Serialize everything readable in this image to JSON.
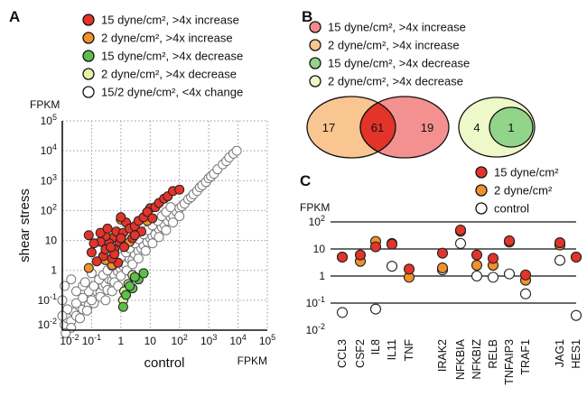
{
  "colors": {
    "red": "#e3342a",
    "orange": "#f0922b",
    "green": "#5cbf4a",
    "lightgreen": "#e4f3a6",
    "white": "#ffffff",
    "pink": "#f28a8a",
    "peach": "#f9c590",
    "venn_green": "#92d48a",
    "venn_lightgreen": "#eef8c8"
  },
  "panels": {
    "a": "A",
    "b": "B",
    "c": "C"
  },
  "legend_a": [
    {
      "text": "15 dyne/cm², >4x increase",
      "color": "red"
    },
    {
      "text": "2 dyne/cm², >4x increase",
      "color": "orange"
    },
    {
      "text": "15 dyne/cm², >4x decrease",
      "color": "green"
    },
    {
      "text": "2 dyne/cm², >4x decrease",
      "color": "lightgreen"
    },
    {
      "text": "15/2 dyne/cm², <4x change",
      "color": "white"
    }
  ],
  "legend_b": [
    {
      "text": "15 dyne/cm², >4x increase",
      "color": "pink"
    },
    {
      "text": "2 dyne/cm², >4x increase",
      "color": "peach"
    },
    {
      "text": "15 dyne/cm², >4x decrease",
      "color": "venn_green"
    },
    {
      "text": "2 dyne/cm², >4x decrease",
      "color": "venn_lightgreen"
    }
  ],
  "venn": {
    "increase": {
      "only_2": "17",
      "both": "61",
      "only_15": "19"
    },
    "decrease": {
      "only_2": "4",
      "both": "1"
    }
  },
  "legend_c": [
    {
      "text": "15 dyne/cm²",
      "color": "red"
    },
    {
      "text": "2 dyne/cm²",
      "color": "orange"
    },
    {
      "text": "control",
      "color": "white"
    }
  ],
  "chart_data": [
    {
      "type": "scatter",
      "title": "",
      "xlabel": "control",
      "ylabel": "shear stress",
      "x_unit": "FPKM",
      "y_unit": "FPKM",
      "scale": "log10",
      "xlim": [
        0.01,
        100000
      ],
      "ylim": [
        0.01,
        100000
      ],
      "xticks": [
        "10-2",
        "10-1",
        "1",
        "10",
        "102",
        "103",
        "104",
        "105"
      ],
      "yticks": [
        "10-2",
        "10-1",
        "1",
        "10",
        "102",
        "103",
        "104",
        "105"
      ],
      "grid": "dotted",
      "series": [
        {
          "name": "15 dyne/cm², >4x increase",
          "color": "red",
          "points": [
            [
              0.8,
              1.8
            ],
            [
              0.6,
              5
            ],
            [
              0.9,
              9
            ],
            [
              0.5,
              12
            ],
            [
              0.4,
              8
            ],
            [
              0.3,
              14
            ],
            [
              0.2,
              9
            ],
            [
              0.12,
              8
            ],
            [
              0.1,
              4
            ],
            [
              0.08,
              15
            ],
            [
              0.25,
              3
            ],
            [
              0.5,
              2.5
            ],
            [
              0.7,
              20
            ],
            [
              1.5,
              40
            ],
            [
              1.2,
              18
            ],
            [
              2,
              25
            ],
            [
              3,
              30
            ],
            [
              4,
              45
            ],
            [
              6,
              60
            ],
            [
              10,
              120
            ],
            [
              8,
              90
            ],
            [
              15,
              130
            ],
            [
              20,
              180
            ],
            [
              30,
              250
            ],
            [
              40,
              300
            ],
            [
              60,
              450
            ],
            [
              5,
              20
            ],
            [
              2.5,
              12
            ],
            [
              1.3,
              6
            ],
            [
              1,
              12
            ],
            [
              0.6,
              3.5
            ],
            [
              0.15,
              2
            ],
            [
              0.2,
              18
            ],
            [
              0.3,
              5
            ],
            [
              3,
              15
            ],
            [
              1,
              60
            ],
            [
              100,
              500
            ],
            [
              0.35,
              25
            ],
            [
              12,
              55
            ],
            [
              0.45,
              6
            ]
          ]
        },
        {
          "name": "2 dyne/cm², >4x increase",
          "color": "orange",
          "points": [
            [
              0.08,
              1.2
            ],
            [
              0.5,
              1.5
            ],
            [
              1,
              50
            ],
            [
              8,
              45
            ],
            [
              0.3,
              2.2
            ],
            [
              2,
              9
            ]
          ]
        },
        {
          "name": "15 dyne/cm², >4x decrease",
          "color": "green",
          "points": [
            [
              1.5,
              0.15
            ],
            [
              2.5,
              0.25
            ],
            [
              4,
              0.5
            ],
            [
              6,
              0.8
            ],
            [
              1.2,
              0.06
            ],
            [
              2,
              0.3
            ],
            [
              3,
              0.6
            ]
          ]
        },
        {
          "name": "2 dyne/cm², >4x decrease",
          "color": "lightgreen",
          "points": [
            [
              1.3,
              0.2
            ],
            [
              1.8,
              0.35
            ],
            [
              2.5,
              0.7
            ],
            [
              1.2,
              0.1
            ]
          ]
        },
        {
          "name": "15/2 dyne/cm², <4x change",
          "color": "white",
          "points": [
            [
              0.012,
              0.015
            ],
            [
              0.015,
              0.025
            ],
            [
              0.02,
              0.02
            ],
            [
              0.025,
              0.04
            ],
            [
              0.03,
              0.03
            ],
            [
              0.04,
              0.06
            ],
            [
              0.05,
              0.05
            ],
            [
              0.06,
              0.09
            ],
            [
              0.08,
              0.07
            ],
            [
              0.1,
              0.15
            ],
            [
              0.12,
              0.12
            ],
            [
              0.15,
              0.2
            ],
            [
              0.2,
              0.18
            ],
            [
              0.25,
              0.3
            ],
            [
              0.3,
              0.35
            ],
            [
              0.4,
              0.5
            ],
            [
              0.5,
              0.45
            ],
            [
              0.6,
              0.7
            ],
            [
              0.8,
              0.9
            ],
            [
              1,
              1.1
            ],
            [
              1.2,
              1.4
            ],
            [
              1.5,
              1.5
            ],
            [
              2,
              2.4
            ],
            [
              2.5,
              2.2
            ],
            [
              3,
              3.5
            ],
            [
              4,
              4.5
            ],
            [
              5,
              5.5
            ],
            [
              6,
              7
            ],
            [
              8,
              9
            ],
            [
              10,
              12
            ],
            [
              12,
              14
            ],
            [
              15,
              16
            ],
            [
              20,
              24
            ],
            [
              25,
              28
            ],
            [
              30,
              35
            ],
            [
              40,
              45
            ],
            [
              50,
              60
            ],
            [
              60,
              70
            ],
            [
              80,
              90
            ],
            [
              100,
              120
            ],
            [
              120,
              140
            ],
            [
              150,
              170
            ],
            [
              200,
              240
            ],
            [
              250,
              280
            ],
            [
              300,
              350
            ],
            [
              400,
              450
            ],
            [
              500,
              600
            ],
            [
              600,
              700
            ],
            [
              800,
              900
            ],
            [
              1000,
              1200
            ],
            [
              1200,
              1400
            ],
            [
              1500,
              1700
            ],
            [
              2000,
              2400
            ],
            [
              3000,
              3500
            ],
            [
              4000,
              4500
            ],
            [
              5000,
              6000
            ],
            [
              7000,
              8000
            ],
            [
              9000,
              10000
            ],
            [
              0.015,
              0.05
            ],
            [
              0.03,
              0.08
            ],
            [
              0.05,
              0.12
            ],
            [
              0.08,
              0.2
            ],
            [
              0.12,
              0.3
            ],
            [
              0.18,
              0.5
            ],
            [
              0.25,
              0.7
            ],
            [
              0.35,
              1
            ],
            [
              0.5,
              1.4
            ],
            [
              0.7,
              2
            ],
            [
              1,
              2.8
            ],
            [
              1.5,
              4
            ],
            [
              2,
              5.5
            ],
            [
              3,
              8
            ],
            [
              4,
              11
            ],
            [
              6,
              16
            ],
            [
              8,
              22
            ],
            [
              12,
              32
            ],
            [
              18,
              45
            ],
            [
              25,
              65
            ],
            [
              35,
              90
            ],
            [
              50,
              130
            ],
            [
              0.02,
              0.012
            ],
            [
              0.04,
              0.025
            ],
            [
              0.07,
              0.045
            ],
            [
              0.12,
              0.08
            ],
            [
              0.2,
              0.13
            ],
            [
              0.35,
              0.22
            ],
            [
              0.6,
              0.4
            ],
            [
              1,
              0.65
            ],
            [
              1.6,
              1
            ],
            [
              2.5,
              1.6
            ],
            [
              4,
              2.5
            ],
            [
              7,
              4.5
            ],
            [
              12,
              8
            ],
            [
              20,
              13
            ],
            [
              35,
              22
            ],
            [
              60,
              40
            ],
            [
              100,
              65
            ],
            [
              0.01,
              0.03
            ],
            [
              0.01,
              0.1
            ],
            [
              0.012,
              0.3
            ],
            [
              0.02,
              0.5
            ],
            [
              0.05,
              0.3
            ],
            [
              0.1,
              0.8
            ],
            [
              0.03,
              0.2
            ],
            [
              0.06,
              0.4
            ],
            [
              0.1,
              0.1
            ],
            [
              0.3,
              0.1
            ],
            [
              0.5,
              0.2
            ],
            [
              0.8,
              0.3
            ],
            [
              0.013,
              0.008
            ]
          ]
        }
      ]
    },
    {
      "type": "scatter",
      "title": "",
      "xlabel": "",
      "ylabel": "FPKM",
      "scale": "log10",
      "ylim": [
        0.01,
        100
      ],
      "yticks": [
        "102",
        "10",
        "1",
        "10-1",
        "10-2"
      ],
      "categories": [
        "CCL3",
        "CSF2",
        "IL8",
        "IL11",
        "TNF",
        "IRAK2",
        "NFKBIA",
        "NFKBIZ",
        "RELB",
        "TNFAIP3",
        "TRAF1",
        "JAG1",
        "HES1"
      ],
      "series": [
        {
          "name": "15 dyne/cm²",
          "color": "red",
          "values": [
            5,
            6,
            12,
            15,
            1.8,
            7,
            50,
            6,
            4.5,
            20,
            1.1,
            17,
            5
          ]
        },
        {
          "name": "2 dyne/cm²",
          "color": "orange",
          "values": [
            5,
            3.5,
            19,
            16,
            0.9,
            2,
            45,
            2.5,
            2.5,
            18,
            0.7,
            14,
            5
          ]
        },
        {
          "name": "control",
          "color": "white",
          "values": [
            0.045,
            null,
            0.06,
            2.3,
            null,
            1.7,
            16,
            1,
            0.9,
            1.2,
            0.22,
            3.8,
            0.035
          ]
        }
      ]
    }
  ]
}
